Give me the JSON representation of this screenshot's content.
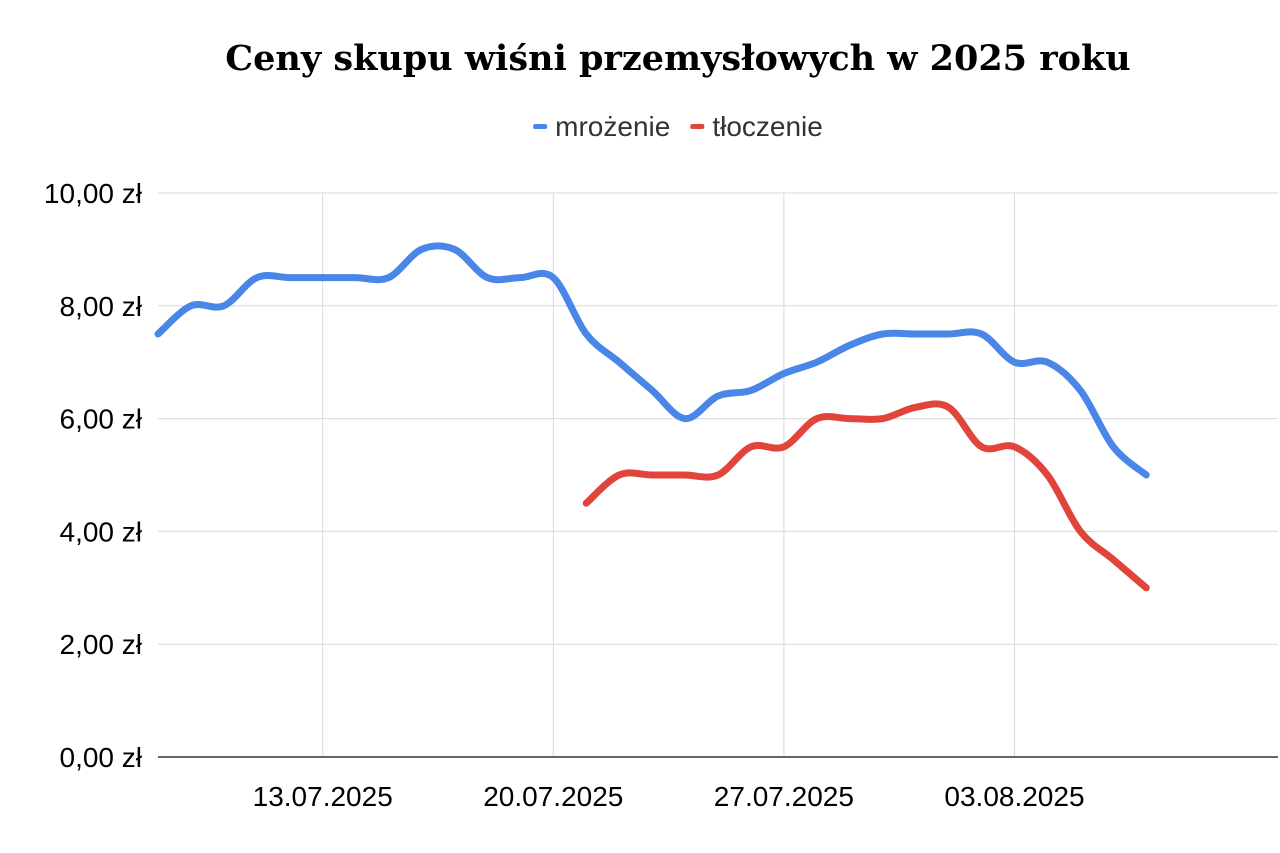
{
  "chart_data": {
    "type": "line",
    "title": "Ceny skupu wiśni przemysłowych w 2025 roku",
    "xlabel": "",
    "ylabel": "",
    "legend_position": "top-center",
    "grid": true,
    "x_range": [
      "2025-07-08",
      "2025-08-11"
    ],
    "ylim": [
      0,
      10
    ],
    "y_ticks": [
      {
        "value": 0,
        "label": "0,00 zł"
      },
      {
        "value": 2,
        "label": "2,00 zł"
      },
      {
        "value": 4,
        "label": "4,00 zł"
      },
      {
        "value": 6,
        "label": "6,00 zł"
      },
      {
        "value": 8,
        "label": "8,00 zł"
      },
      {
        "value": 10,
        "label": "10,00 zł"
      }
    ],
    "x_ticks": [
      {
        "date": "2025-07-13",
        "label": "13.07.2025"
      },
      {
        "date": "2025-07-20",
        "label": "20.07.2025"
      },
      {
        "date": "2025-07-27",
        "label": "27.07.2025"
      },
      {
        "date": "2025-08-03",
        "label": "03.08.2025"
      }
    ],
    "series": [
      {
        "name": "mrożenie",
        "color": "#4a86e8",
        "points": [
          {
            "x": "2025-07-08",
            "y": 7.5
          },
          {
            "x": "2025-07-09",
            "y": 8.0
          },
          {
            "x": "2025-07-10",
            "y": 8.0
          },
          {
            "x": "2025-07-11",
            "y": 8.5
          },
          {
            "x": "2025-07-12",
            "y": 8.5
          },
          {
            "x": "2025-07-13",
            "y": 8.5
          },
          {
            "x": "2025-07-14",
            "y": 8.5
          },
          {
            "x": "2025-07-15",
            "y": 8.5
          },
          {
            "x": "2025-07-16",
            "y": 9.0
          },
          {
            "x": "2025-07-17",
            "y": 9.0
          },
          {
            "x": "2025-07-18",
            "y": 8.5
          },
          {
            "x": "2025-07-19",
            "y": 8.5
          },
          {
            "x": "2025-07-20",
            "y": 8.5
          },
          {
            "x": "2025-07-21",
            "y": 7.5
          },
          {
            "x": "2025-07-22",
            "y": 7.0
          },
          {
            "x": "2025-07-23",
            "y": 6.5
          },
          {
            "x": "2025-07-24",
            "y": 6.0
          },
          {
            "x": "2025-07-25",
            "y": 6.4
          },
          {
            "x": "2025-07-26",
            "y": 6.5
          },
          {
            "x": "2025-07-27",
            "y": 6.8
          },
          {
            "x": "2025-07-28",
            "y": 7.0
          },
          {
            "x": "2025-07-29",
            "y": 7.3
          },
          {
            "x": "2025-07-30",
            "y": 7.5
          },
          {
            "x": "2025-07-31",
            "y": 7.5
          },
          {
            "x": "2025-08-01",
            "y": 7.5
          },
          {
            "x": "2025-08-02",
            "y": 7.5
          },
          {
            "x": "2025-08-03",
            "y": 7.0
          },
          {
            "x": "2025-08-04",
            "y": 7.0
          },
          {
            "x": "2025-08-05",
            "y": 6.5
          },
          {
            "x": "2025-08-06",
            "y": 5.5
          },
          {
            "x": "2025-08-07",
            "y": 5.0
          }
        ]
      },
      {
        "name": "tłoczenie",
        "color": "#e0443a",
        "points": [
          {
            "x": "2025-07-21",
            "y": 4.5
          },
          {
            "x": "2025-07-22",
            "y": 5.0
          },
          {
            "x": "2025-07-23",
            "y": 5.0
          },
          {
            "x": "2025-07-24",
            "y": 5.0
          },
          {
            "x": "2025-07-25",
            "y": 5.0
          },
          {
            "x": "2025-07-26",
            "y": 5.5
          },
          {
            "x": "2025-07-27",
            "y": 5.5
          },
          {
            "x": "2025-07-28",
            "y": 6.0
          },
          {
            "x": "2025-07-29",
            "y": 6.0
          },
          {
            "x": "2025-07-30",
            "y": 6.0
          },
          {
            "x": "2025-07-31",
            "y": 6.2
          },
          {
            "x": "2025-08-01",
            "y": 6.2
          },
          {
            "x": "2025-08-02",
            "y": 5.5
          },
          {
            "x": "2025-08-03",
            "y": 5.5
          },
          {
            "x": "2025-08-04",
            "y": 5.0
          },
          {
            "x": "2025-08-05",
            "y": 4.0
          },
          {
            "x": "2025-08-06",
            "y": 3.5
          },
          {
            "x": "2025-08-07",
            "y": 3.0
          }
        ]
      }
    ]
  }
}
